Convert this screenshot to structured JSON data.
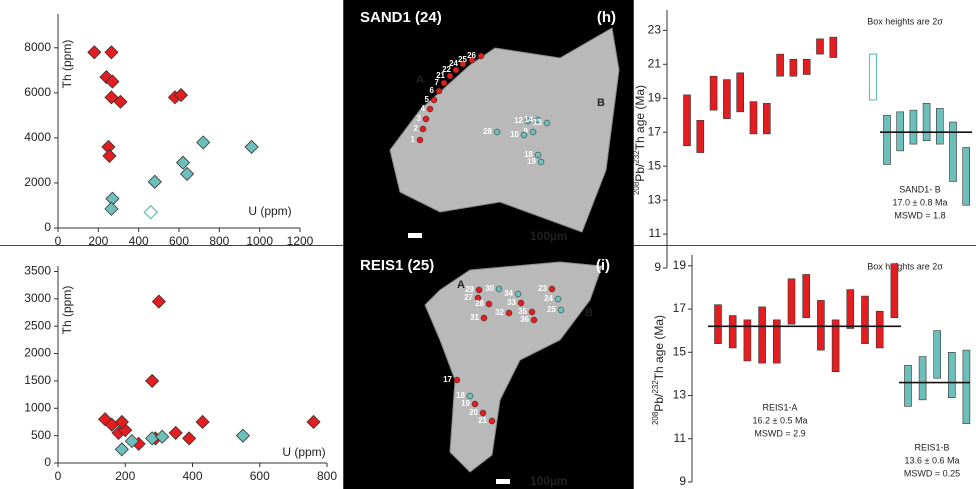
{
  "chart_data": [
    {
      "type": "scatter",
      "xlabel": "U (ppm)",
      "ylabel": "Th (ppm)",
      "xlim": [
        0,
        1200
      ],
      "ylim": [
        0,
        9500
      ],
      "xticks": [
        0,
        200,
        400,
        600,
        800,
        1000,
        1200
      ],
      "yticks": [
        0,
        2000,
        4000,
        6000,
        8000
      ],
      "series": [
        {
          "color": "#e41e20",
          "marker": "filled",
          "x": [
            180,
            265,
            240,
            270,
            265,
            310,
            580,
            610,
            250,
            255
          ],
          "values": [
            7800,
            7800,
            6700,
            6500,
            5800,
            5600,
            5800,
            5900,
            3600,
            3200
          ]
        },
        {
          "color": "#6dbfbb",
          "marker": "filled",
          "x": [
            270,
            265,
            480,
            620,
            640,
            720,
            960
          ],
          "values": [
            1300,
            850,
            2050,
            2900,
            2400,
            3800,
            3600
          ]
        },
        {
          "color": "#6dbfbb",
          "marker": "hollow",
          "x": [
            460
          ],
          "values": [
            700
          ]
        }
      ]
    },
    {
      "type": "range",
      "ylabel": [
        "208",
        "Pb/",
        "232",
        "Th age (Ma)"
      ],
      "ylim": [
        9,
        24.2
      ],
      "yticks": [
        9,
        11,
        13,
        15,
        17,
        19,
        21,
        23
      ],
      "note": "Box heights are 2σ",
      "groups": [
        {
          "color": "#e41e20",
          "fill": true,
          "low": [
            16.2,
            15.8,
            18.3,
            17.8,
            18.2,
            16.9,
            16.9,
            20.3,
            20.3,
            20.4,
            21.6,
            21.4
          ],
          "high": [
            19.2,
            17.7,
            20.3,
            20.1,
            20.5,
            18.8,
            18.7,
            21.6,
            21.3,
            21.3,
            22.5,
            22.6
          ]
        },
        {
          "color": "#6dbfbb",
          "fill": false,
          "low": [
            18.9
          ],
          "high": [
            21.6
          ]
        },
        {
          "color": "#6dbfbb",
          "fill": true,
          "low": [
            15.1,
            15.9,
            16.3,
            16.5,
            16.3,
            14.1,
            12.7
          ],
          "high": [
            18.0,
            18.2,
            18.3,
            18.7,
            18.4,
            17.6,
            16.1
          ],
          "mean": 17.0,
          "label": "SAND1- B",
          "age": "17.0 ± 0.8 Ma",
          "mswd": "MSWD = 1.8"
        }
      ]
    },
    {
      "type": "scatter",
      "xlabel": "U (ppm)",
      "ylabel": "Th (ppm)",
      "xlim": [
        0,
        800
      ],
      "ylim": [
        0,
        3600
      ],
      "xticks": [
        0,
        200,
        400,
        600,
        800
      ],
      "yticks": [
        0,
        500,
        1000,
        1500,
        2000,
        2500,
        3000,
        3500
      ],
      "series": [
        {
          "color": "#e41e20",
          "marker": "filled",
          "x": [
            300,
            280,
            140,
            160,
            180,
            200,
            190,
            240,
            290,
            350,
            390,
            430,
            760
          ],
          "values": [
            2950,
            1500,
            800,
            700,
            550,
            600,
            750,
            350,
            450,
            550,
            450,
            750,
            750
          ]
        },
        {
          "color": "#6dbfbb",
          "marker": "filled",
          "x": [
            190,
            220,
            280,
            310,
            550
          ],
          "values": [
            250,
            400,
            450,
            480,
            500
          ]
        }
      ]
    },
    {
      "type": "range",
      "ylabel": [
        "208",
        "Pb/",
        "232",
        "Th age (Ma)"
      ],
      "ylim": [
        9,
        19.5
      ],
      "yticks": [
        9,
        11,
        13,
        15,
        17,
        19
      ],
      "note": "Box heights are 2σ",
      "groups": [
        {
          "color": "#e41e20",
          "fill": true,
          "low": [
            15.4,
            15.2,
            14.6,
            14.5,
            14.5,
            16.3,
            16.6,
            15.1,
            14.1,
            16.1,
            15.4,
            15.2,
            16.6
          ],
          "high": [
            17.2,
            16.7,
            16.5,
            17.1,
            16.5,
            18.4,
            18.6,
            17.4,
            16.5,
            17.9,
            17.6,
            16.9,
            19.1
          ],
          "mean": 16.2,
          "label": "REIS1-A",
          "age": "16.2 ± 0.5 Ma",
          "mswd": "MSWD = 2.9"
        },
        {
          "color": "#6dbfbb",
          "fill": true,
          "low": [
            12.5,
            12.8,
            13.8,
            12.9,
            11.7
          ],
          "high": [
            14.4,
            14.8,
            16.0,
            15.0,
            15.1
          ],
          "mean": 13.6,
          "label": "REIS1-B",
          "age": "13.6 ± 0.6 Ma",
          "mswd": "MSWD = 0.25"
        }
      ]
    }
  ],
  "images": [
    {
      "title": "SAND1 (24)",
      "panel": "(h)",
      "group_a": "A",
      "group_b": "B",
      "scale": "100µm",
      "spots": [
        {
          "label": "1",
          "color": "#e41e20"
        },
        {
          "label": "2",
          "color": "#e41e20"
        },
        {
          "label": "3",
          "color": "#e41e20"
        },
        {
          "label": "4",
          "color": "#e41e20"
        },
        {
          "label": "5",
          "color": "#e41e20"
        },
        {
          "label": "6",
          "color": "#e41e20"
        },
        {
          "label": "7",
          "color": "#e41e20"
        },
        {
          "label": "21",
          "color": "#e41e20"
        },
        {
          "label": "22",
          "color": "#e41e20"
        },
        {
          "label": "24",
          "color": "#e41e20"
        },
        {
          "label": "25",
          "color": "#e41e20"
        },
        {
          "label": "26",
          "color": "#e41e20"
        },
        {
          "label": "12",
          "color": "#6dbfbb"
        },
        {
          "label": "14",
          "color": "#6dbfbb"
        },
        {
          "label": "13",
          "color": "#6dbfbb"
        },
        {
          "label": "9",
          "color": "#6dbfbb"
        },
        {
          "label": "10",
          "color": "#6dbfbb"
        },
        {
          "label": "18",
          "color": "#6dbfbb"
        },
        {
          "label": "19",
          "color": "#6dbfbb"
        },
        {
          "label": "28",
          "color": "#6dbfbb"
        }
      ]
    },
    {
      "title": "REIS1 (25)",
      "panel": "(i)",
      "group_a": "A",
      "group_b": "B",
      "scale": "100µm",
      "spots": [
        {
          "label": "29",
          "color": "#e41e20"
        },
        {
          "label": "27",
          "color": "#e41e20"
        },
        {
          "label": "28",
          "color": "#e41e20"
        },
        {
          "label": "30",
          "color": "#6dbfbb"
        },
        {
          "label": "34",
          "color": "#6dbfbb"
        },
        {
          "label": "33",
          "color": "#e41e20"
        },
        {
          "label": "32",
          "color": "#e41e20"
        },
        {
          "label": "31",
          "color": "#e41e20"
        },
        {
          "label": "35",
          "color": "#e41e20"
        },
        {
          "label": "36",
          "color": "#e41e20"
        },
        {
          "label": "23",
          "color": "#e41e20"
        },
        {
          "label": "24",
          "color": "#6dbfbb"
        },
        {
          "label": "25",
          "color": "#6dbfbb"
        },
        {
          "label": "17",
          "color": "#e41e20"
        },
        {
          "label": "18",
          "color": "#6dbfbb"
        },
        {
          "label": "19",
          "color": "#e41e20"
        },
        {
          "label": "20",
          "color": "#e41e20"
        },
        {
          "label": "21",
          "color": "#e41e20"
        }
      ]
    }
  ]
}
